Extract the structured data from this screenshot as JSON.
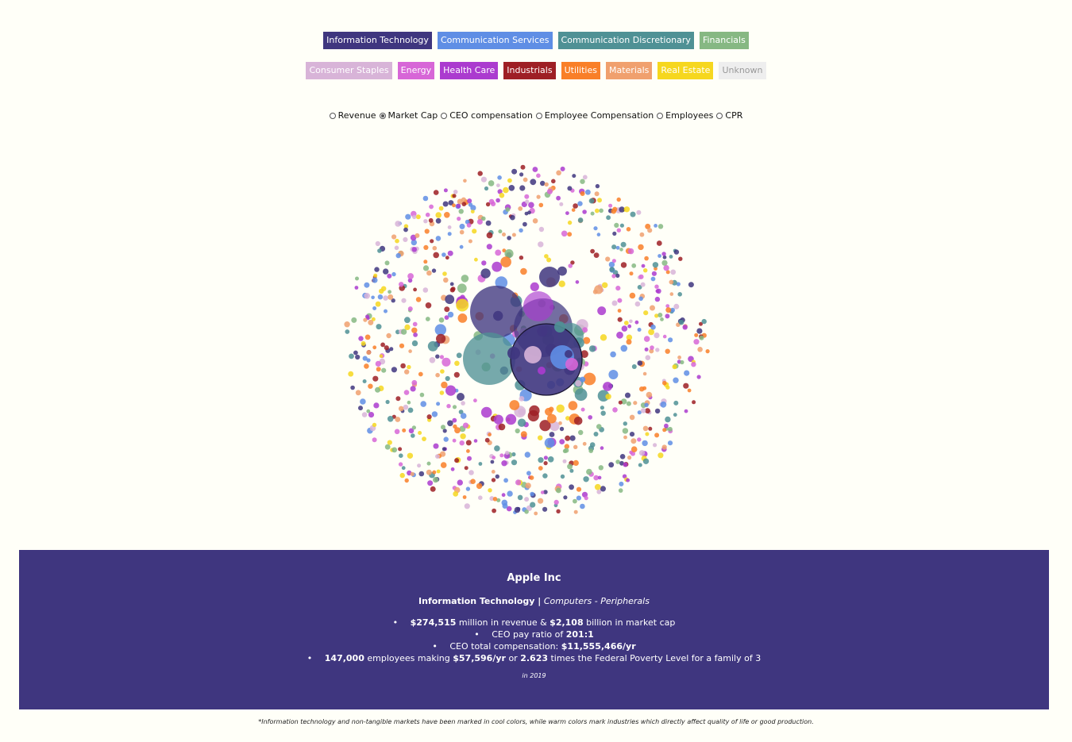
{
  "top_clipped_text": "",
  "legend": {
    "row1": [
      {
        "label": "Information Technology",
        "color": "#3f367f"
      },
      {
        "label": "Communication Services",
        "color": "#5f8ee5"
      },
      {
        "label": "Communication Discretionary",
        "color": "#4f9195"
      },
      {
        "label": "Financials",
        "color": "#86b883"
      }
    ],
    "row2": [
      {
        "label": "Consumer Staples",
        "color": "#d8b4d8"
      },
      {
        "label": "Energy",
        "color": "#d766d7"
      },
      {
        "label": "Health Care",
        "color": "#ab3bcf"
      },
      {
        "label": "Industrials",
        "color": "#9e1f25"
      },
      {
        "label": "Utilities",
        "color": "#f97f28"
      },
      {
        "label": "Materials",
        "color": "#f0a06e"
      },
      {
        "label": "Real Estate",
        "color": "#f6d71f"
      },
      {
        "label": "Unknown",
        "color": "#eeeeee"
      }
    ]
  },
  "metric_options": [
    {
      "label": "Revenue",
      "checked": false
    },
    {
      "label": "Market Cap",
      "checked": true
    },
    {
      "label": "CEO compensation",
      "checked": false
    },
    {
      "label": "Employee Compensation",
      "checked": false
    },
    {
      "label": "Employees",
      "checked": false
    },
    {
      "label": "CPR",
      "checked": false
    }
  ],
  "chart_data": {
    "type": "bubble",
    "description_visible": false,
    "selected_metric": "Market Cap",
    "sector_colors": {
      "Information Technology": "#3f367f",
      "Communication Services": "#5f8ee5",
      "Communication Discretionary": "#4f9195",
      "Financials": "#86b883",
      "Consumer Staples": "#d8b4d8",
      "Energy": "#d766d7",
      "Health Care": "#ab3bcf",
      "Industrials": "#9e1f25",
      "Utilities": "#f97f28",
      "Materials": "#f0a06e",
      "Real Estate": "#f6d71f",
      "Unknown": "#eeeeee"
    }
  },
  "info": {
    "company": "Apple Inc",
    "sector": "Information Technology |",
    "industry": "Computers - Peripherals",
    "stats": [
      {
        "bold_1": "$274,515",
        "text_1": " million in revenue & ",
        "bold_2": "$2,108",
        "text_2": " billion in market cap"
      },
      {
        "text_1": "CEO pay ratio of ",
        "bold_1": "201:1"
      },
      {
        "text_1": "CEO total compensation: ",
        "bold_1": "$11,555,466/yr"
      },
      {
        "bold_1": "147,000",
        "text_1": " employees making ",
        "bold_2": "$57,596/yr",
        "text_2": " or ",
        "bold_3": "2.623",
        "text_3": " times the Federal Poverty Level for a family of 3"
      }
    ],
    "year_note": "in 2019"
  },
  "footnote": "*Information technology and non-tangible markets have been marked in cool colors, while warm colors mark industries which directly affect quality of life or good production."
}
